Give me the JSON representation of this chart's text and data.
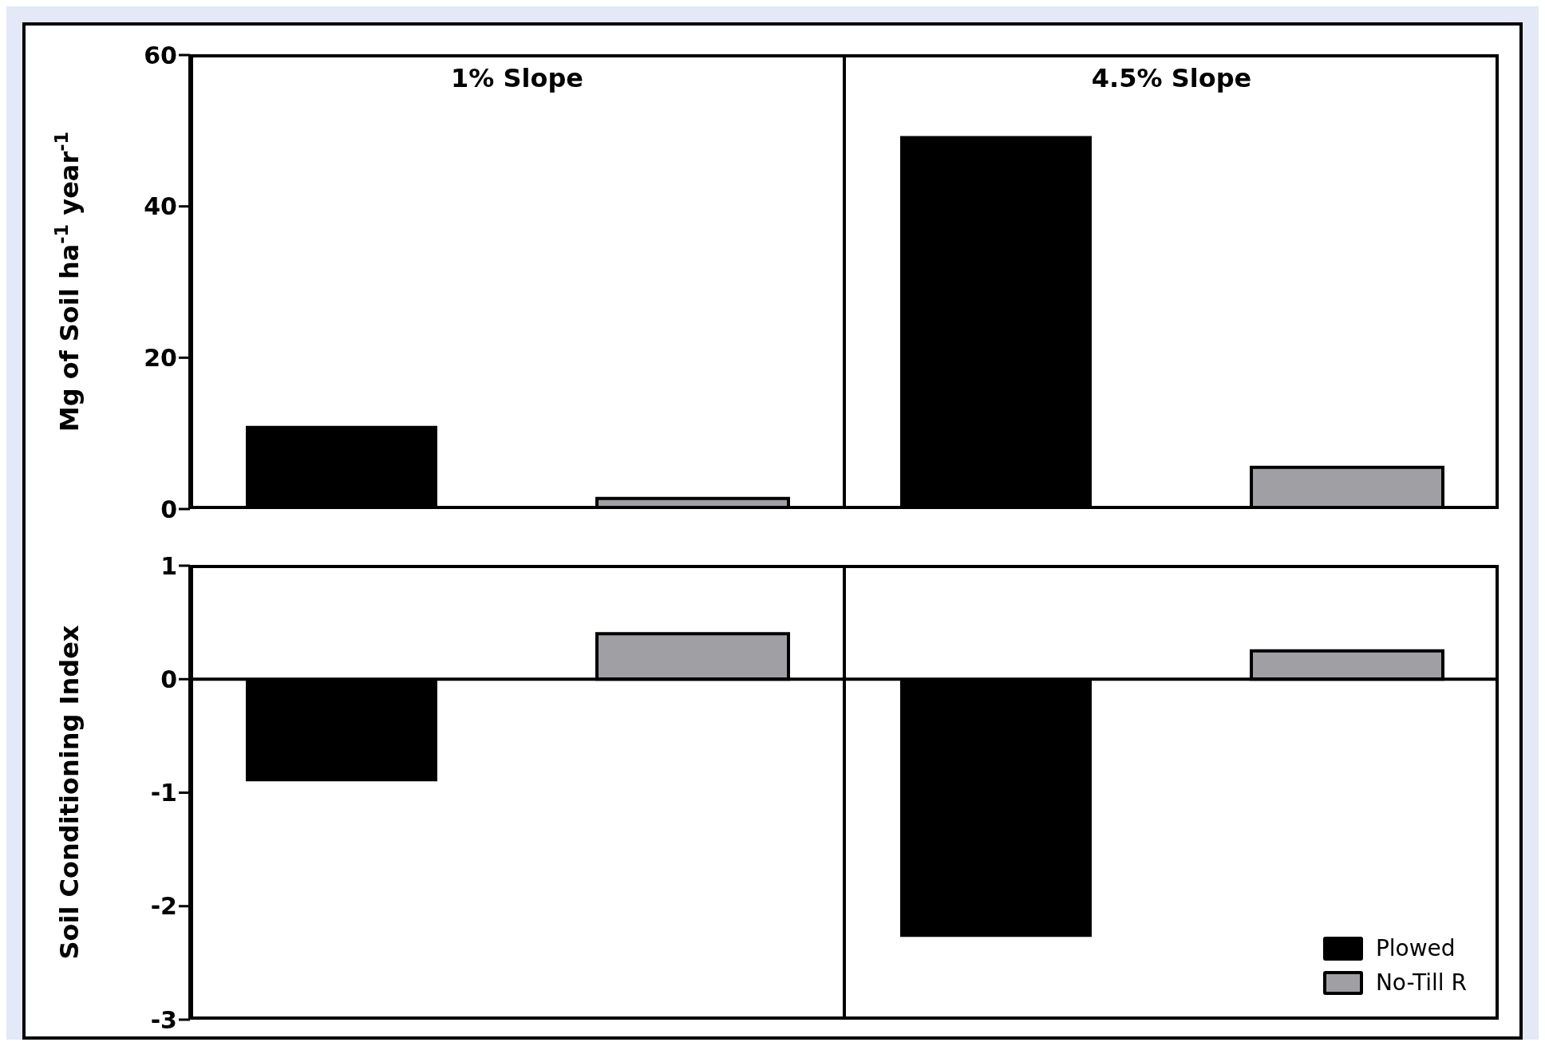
{
  "chart_data": [
    {
      "type": "bar",
      "ylabel": "Mg of Soil ha$^{-1}$ year$^{-1}$",
      "categories": [
        "1% Slope",
        "4.5% Slope"
      ],
      "ylim": [
        0,
        60
      ],
      "yticks": [
        0,
        20,
        40,
        60
      ],
      "series": [
        {
          "color": "#000000",
          "values": [
            11,
            49.3
          ]
        },
        {
          "color": "#a09fa3",
          "values": [
            1.4,
            5.5
          ]
        }
      ]
    },
    {
      "type": "bar",
      "ylabel": "Soil Conditioning Index",
      "categories": [
        null,
        null
      ],
      "ylim": [
        -3,
        1
      ],
      "yticks": [
        -3,
        -2,
        -1,
        0,
        1
      ],
      "legend": "bottom right",
      "series": [
        {
          "name": "Plowed",
          "color": "#000000",
          "values": [
            -0.9,
            -2.27
          ]
        },
        {
          "name": "No-Till R",
          "color": "#a09fa3",
          "values": [
            0.4,
            0.25
          ]
        }
      ]
    }
  ]
}
